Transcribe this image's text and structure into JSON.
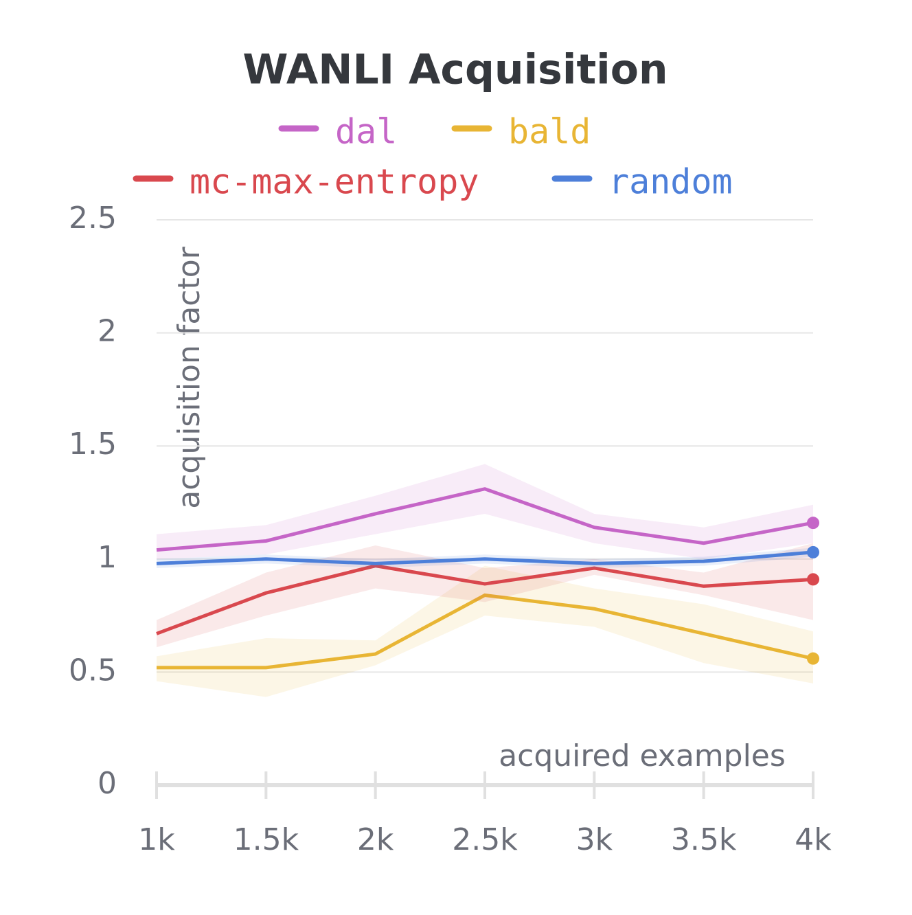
{
  "chart_data": {
    "type": "line",
    "title": "WANLI Acquisition",
    "x_label": "acquired examples",
    "y_label": "acquisition factor",
    "x": [
      1000,
      1500,
      2000,
      2500,
      3000,
      3500,
      4000
    ],
    "xlim": [
      1000,
      4000
    ],
    "xticks": [
      {
        "value": 1000,
        "label": "1k"
      },
      {
        "value": 1500,
        "label": "1.5k"
      },
      {
        "value": 2000,
        "label": "2k"
      },
      {
        "value": 2500,
        "label": "2.5k"
      },
      {
        "value": 3000,
        "label": "3k"
      },
      {
        "value": 3500,
        "label": "3.5k"
      },
      {
        "value": 4000,
        "label": "4k"
      }
    ],
    "ylim": [
      0,
      2.5
    ],
    "yticks": [
      0,
      0.5,
      1,
      1.5,
      2,
      2.5
    ],
    "grid": true,
    "series": [
      {
        "name": "dal",
        "color": "#c565c7",
        "values": [
          1.04,
          1.08,
          1.2,
          1.31,
          1.14,
          1.07,
          1.16
        ],
        "upper": [
          1.11,
          1.15,
          1.28,
          1.42,
          1.2,
          1.14,
          1.24
        ],
        "lower": [
          1.0,
          1.02,
          1.11,
          1.2,
          1.07,
          1.0,
          1.07
        ]
      },
      {
        "name": "bald",
        "color": "#e8b534",
        "values": [
          0.52,
          0.52,
          0.58,
          0.84,
          0.78,
          0.67,
          0.56
        ],
        "upper": [
          0.57,
          0.65,
          0.64,
          0.97,
          0.87,
          0.8,
          0.68
        ],
        "lower": [
          0.46,
          0.39,
          0.53,
          0.75,
          0.7,
          0.54,
          0.45
        ]
      },
      {
        "name": "mc-max-entropy",
        "color": "#d9484e",
        "values": [
          0.67,
          0.85,
          0.97,
          0.89,
          0.96,
          0.88,
          0.91
        ],
        "upper": [
          0.73,
          0.94,
          1.06,
          0.96,
          1.0,
          0.94,
          1.07
        ],
        "lower": [
          0.61,
          0.75,
          0.87,
          0.81,
          0.93,
          0.84,
          0.73
        ]
      },
      {
        "name": "random",
        "color": "#4d7fd9",
        "values": [
          0.98,
          1.0,
          0.98,
          1.0,
          0.98,
          0.99,
          1.03
        ],
        "upper": [
          1.0,
          1.02,
          1.0,
          1.02,
          1.0,
          1.01,
          1.05
        ],
        "lower": [
          0.96,
          0.98,
          0.96,
          0.98,
          0.96,
          0.97,
          1.01
        ]
      }
    ]
  }
}
